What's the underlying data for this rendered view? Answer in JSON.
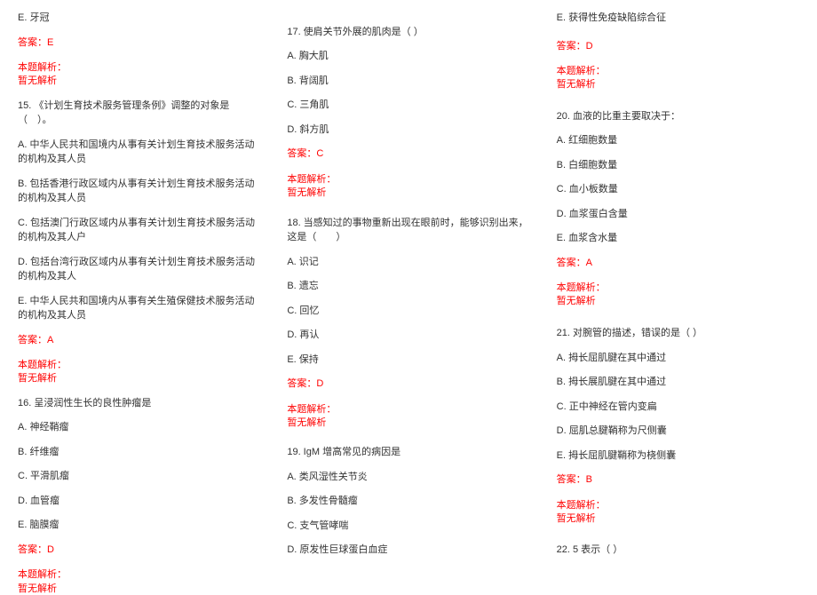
{
  "col1": {
    "q14_e": "E. 牙冠",
    "q14_ans": "答案：E",
    "q14_label": "本题解析：",
    "q14_anal": "暂无解析",
    "q15_stem": "15. 《计划生育技术服务管理条例》调整的对象是（　）。",
    "q15_a": "A. 中华人民共和国境内从事有关计划生育技术服务活动的机构及其人员",
    "q15_b": "B. 包括香港行政区域内从事有关计划生育技术服务活动的机构及其人员",
    "q15_c": "C. 包括澳门行政区域内从事有关计划生育技术服务活动的机构及其人户",
    "q15_d": "D. 包括台湾行政区域内从事有关计划生育技术服务活动的机构及其人",
    "q15_e": "E. 中华人民共和国境内从事有关生殖保健技术服务活动的机构及其人员",
    "q15_ans": "答案：A",
    "q15_label": "本题解析：",
    "q15_anal": "暂无解析",
    "q16_stem": "16. 呈浸润性生长的良性肿瘤是",
    "q16_a": "A. 神经鞘瘤",
    "q16_b": "B. 纤维瘤",
    "q16_c": "C. 平滑肌瘤",
    "q16_d": "D. 血管瘤",
    "q16_e": "E. 脑膜瘤",
    "q16_ans": "答案：D",
    "q16_label": "本题解析：",
    "q16_anal": "暂无解析"
  },
  "col2": {
    "q17_stem": "17. 使肩关节外展的肌肉是（ ）",
    "q17_a": "A. 胸大肌",
    "q17_b": "B. 背阔肌",
    "q17_c": "C. 三角肌",
    "q17_d": "D. 斜方肌",
    "q17_ans": "答案：C",
    "q17_label": "本题解析：",
    "q17_anal": "暂无解析",
    "q18_stem": "18. 当感知过的事物重新出现在眼前时，能够识别出来，这是（　　）",
    "q18_a": "A. 识记",
    "q18_b": "B. 遗忘",
    "q18_c": "C. 回忆",
    "q18_d": "D. 再认",
    "q18_e": "E. 保持",
    "q18_ans": "答案：D",
    "q18_label": "本题解析：",
    "q18_anal": "暂无解析",
    "q19_stem": "19. IgM 增高常见的病因是",
    "q19_a": "A. 类风湿性关节炎",
    "q19_b": "B. 多发性骨髓瘤",
    "q19_c": "C. 支气管哮喘",
    "q19_d": "D. 原发性巨球蛋白血症"
  },
  "col3": {
    "q19_e": "E. 获得性免疫缺陷综合征",
    "q19_ans": "答案：D",
    "q19_label": "本题解析：",
    "q19_anal": "暂无解析",
    "q20_stem": "20. 血液的比重主要取决于：",
    "q20_a": "A. 红细胞数量",
    "q20_b": "B. 白细胞数量",
    "q20_c": "C. 血小板数量",
    "q20_d": "D. 血浆蛋白含量",
    "q20_e": "E. 血浆含水量",
    "q20_ans": "答案：A",
    "q20_label": "本题解析：",
    "q20_anal": "暂无解析",
    "q21_stem": "21. 对腕管的描述，错误的是（ ）",
    "q21_a": "A. 拇长屈肌腱在其中通过",
    "q21_b": "B. 拇长展肌腱在其中通过",
    "q21_c": "C. 正中神经在管内变扁",
    "q21_d": "D. 屈肌总腱鞘称为尺侧囊",
    "q21_e": "E. 拇长屈肌腱鞘称为桡侧囊",
    "q21_ans": "答案：B",
    "q21_label": "本题解析：",
    "q21_anal": "暂无解析",
    "q22_stem": "22. 5 表示（ ）"
  }
}
